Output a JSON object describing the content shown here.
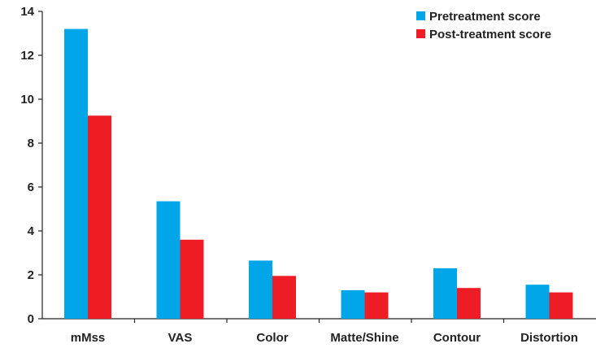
{
  "chart_data": {
    "type": "bar",
    "categories": [
      "mMss",
      "VAS",
      "Color",
      "Matte/Shine",
      "Contour",
      "Distortion"
    ],
    "series": [
      {
        "name": "Pretreatment score",
        "color": "#00a6e8",
        "values": [
          13.2,
          5.35,
          2.65,
          1.3,
          2.3,
          1.55
        ]
      },
      {
        "name": "Post-treatment score",
        "color": "#ee1c25",
        "values": [
          9.25,
          3.6,
          1.95,
          1.2,
          1.4,
          1.2
        ]
      }
    ],
    "ylim": [
      0,
      14
    ],
    "yticks": [
      0,
      2,
      4,
      6,
      8,
      10,
      12,
      14
    ],
    "grid": false,
    "legend": "top-right",
    "title": "",
    "xlabel": "",
    "ylabel": ""
  }
}
